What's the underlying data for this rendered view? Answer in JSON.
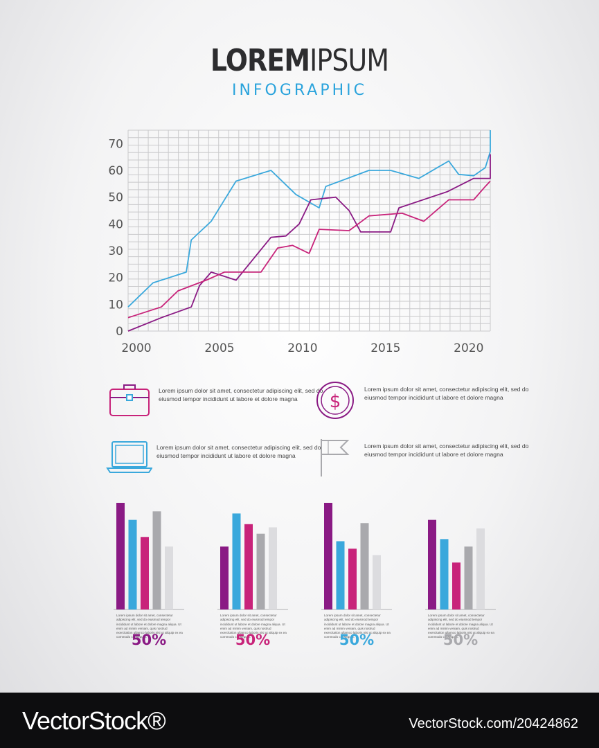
{
  "header": {
    "title_bold": "LOREM",
    "title_rest": "IPSUM",
    "subtitle": "INFOGRAPHIC"
  },
  "colors": {
    "blue": "#3aa8dc",
    "purple": "#8a1a84",
    "magenta": "#c8237a",
    "gray": "#a9a9ad",
    "light_gray": "#dcdcdf",
    "grid": "#c9c9cb"
  },
  "chart_data": [
    {
      "type": "line",
      "title": "",
      "xlabel": "",
      "ylabel": "",
      "xlim": [
        1999.5,
        2021.3
      ],
      "ylim": [
        0,
        75
      ],
      "x_ticks": [
        2000,
        2005,
        2010,
        2015,
        2020
      ],
      "y_ticks": [
        0,
        10,
        20,
        30,
        40,
        50,
        60,
        70
      ],
      "grid": true,
      "legend": "none",
      "series": [
        {
          "color": "#3aa8dc",
          "points": [
            [
              1999.5,
              9
            ],
            [
              2001,
              18
            ],
            [
              2003,
              22
            ],
            [
              2003.3,
              34
            ],
            [
              2004.5,
              41
            ],
            [
              2005.4,
              50
            ],
            [
              2006,
              56
            ],
            [
              2008.1,
              60
            ],
            [
              2009.6,
              51
            ],
            [
              2011,
              46
            ],
            [
              2011.4,
              54
            ],
            [
              2014,
              60
            ],
            [
              2015.3,
              60
            ],
            [
              2017,
              57
            ],
            [
              2018.8,
              63.5
            ],
            [
              2019.4,
              58.5
            ],
            [
              2020.3,
              58
            ],
            [
              2021,
              61
            ],
            [
              2021.8,
              67
            ],
            [
              2022.3,
              75
            ]
          ]
        },
        {
          "color": "#8a1a84",
          "points": [
            [
              1999.5,
              0
            ],
            [
              2001.5,
              5
            ],
            [
              2003.3,
              9
            ],
            [
              2003.8,
              17
            ],
            [
              2004.5,
              22
            ],
            [
              2006,
              19
            ],
            [
              2008.1,
              35
            ],
            [
              2009,
              35.5
            ],
            [
              2009.8,
              40
            ],
            [
              2010.5,
              49
            ],
            [
              2012,
              50
            ],
            [
              2012.8,
              45
            ],
            [
              2013.5,
              37
            ],
            [
              2015.3,
              37
            ],
            [
              2015.8,
              46
            ],
            [
              2018.7,
              52
            ],
            [
              2020.3,
              57
            ],
            [
              2021.8,
              57
            ],
            [
              2022.3,
              66
            ]
          ]
        },
        {
          "color": "#c8237a",
          "points": [
            [
              1999.5,
              5
            ],
            [
              2001.5,
              9
            ],
            [
              2002.5,
              15
            ],
            [
              2004.2,
              19
            ],
            [
              2005.3,
              22
            ],
            [
              2007.5,
              22
            ],
            [
              2008.5,
              31
            ],
            [
              2009.4,
              32
            ],
            [
              2010.4,
              29
            ],
            [
              2011,
              38
            ],
            [
              2012.8,
              37.5
            ],
            [
              2014,
              43
            ],
            [
              2016,
              44
            ],
            [
              2017.3,
              41
            ],
            [
              2018.8,
              49
            ],
            [
              2020.3,
              49
            ],
            [
              2021,
              54
            ],
            [
              2022.3,
              56
            ]
          ]
        }
      ]
    },
    {
      "type": "bar",
      "title": "",
      "ylim": [
        0,
        100
      ],
      "legend": "none",
      "groups": [
        {
          "label": "50%",
          "label_color": "#8a1a84",
          "values": [
            100,
            84,
            68,
            92,
            59
          ]
        },
        {
          "label": "50%",
          "label_color": "#c8237a",
          "values": [
            59,
            90,
            80,
            71,
            77
          ]
        },
        {
          "label": "50%",
          "label_color": "#3aa8dc",
          "values": [
            100,
            64,
            57,
            81,
            51
          ]
        },
        {
          "label": "50%",
          "label_color": "#a9a9ad",
          "values": [
            84,
            66,
            44,
            59,
            76
          ]
        }
      ],
      "bar_colors": [
        "#8a1a84",
        "#3aa8dc",
        "#c8237a",
        "#a9a9ad",
        "#dcdcdf"
      ]
    }
  ],
  "features": [
    {
      "icon": "briefcase-icon",
      "text": "Lorem ipsum dolor sit amet, consectetur adipiscing elit, sed do eiusmod tempor incididunt ut labore et dolore magna"
    },
    {
      "icon": "dollar-coin-icon",
      "text": "Lorem ipsum dolor sit amet, consectetur adipiscing elit, sed do eiusmod tempor incididunt ut labore et dolore magna"
    },
    {
      "icon": "laptop-icon",
      "text": "Lorem ipsum dolor sit amet, consectetur adipiscing elit, sed do eiusmod tempor incididunt ut labore et dolore magna"
    },
    {
      "icon": "flag-icon",
      "text": "Lorem ipsum dolor sit amet, consectetur adipiscing elit, sed do eiusmod tempor incididunt ut labore et dolore magna"
    }
  ],
  "bar_group_text": "Lorem ipsum dolor sit amet, consectetur adipiscing elit, sed do eiusmod tempor incididunt ut labore et dolore magna aliqua. Ut enim ad minim veniam, quis nostrud exercitation ullamco laboris nisi ut aliquip ex ea commodo consequat.",
  "footer": {
    "brand": "VectorStock®",
    "code": "VectorStock.com/20424862"
  }
}
